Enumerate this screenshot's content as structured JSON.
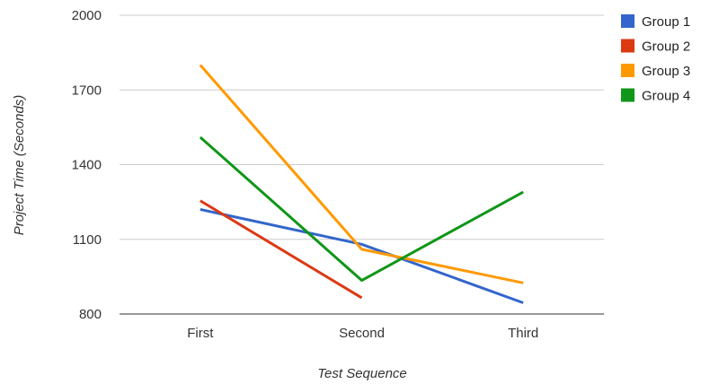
{
  "chart_data": {
    "type": "line",
    "title": "",
    "xlabel": "Test Sequence",
    "ylabel": "Project Time (Seconds)",
    "categories": [
      "First",
      "Second",
      "Third"
    ],
    "ylim": [
      800,
      2000
    ],
    "yticks": [
      800,
      1100,
      1400,
      1700,
      2000
    ],
    "grid": true,
    "legend_position": "right",
    "series": [
      {
        "name": "Group 1",
        "color": "#3366cc",
        "values": [
          1220,
          1080,
          845
        ]
      },
      {
        "name": "Group 2",
        "color": "#dc3912",
        "values": [
          1255,
          865,
          null
        ]
      },
      {
        "name": "Group 3",
        "color": "#ff9900",
        "values": [
          1800,
          1060,
          925
        ]
      },
      {
        "name": "Group 4",
        "color": "#109618",
        "values": [
          1510,
          935,
          1290
        ]
      }
    ]
  }
}
